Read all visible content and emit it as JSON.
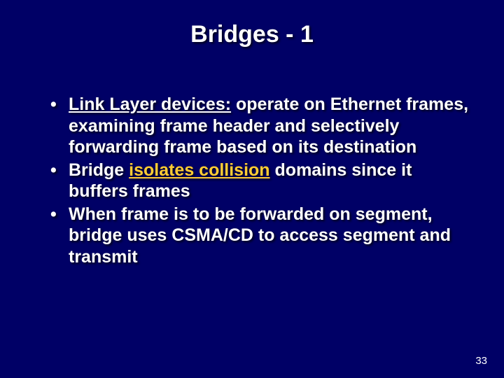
{
  "slide": {
    "background_color": "#000066",
    "text_color": "#ffffff",
    "accent_color": "#ffcc33",
    "title": "Bridges - 1",
    "title_fontsize": 34,
    "body_fontsize": 25,
    "pagenum_fontsize": 15,
    "page_number": "33",
    "bullets": [
      {
        "segments": [
          {
            "text": "Link Layer devices:",
            "underline": true,
            "accent": false
          },
          {
            "text": " operate on Ethernet frames, examining frame header and selectively forwarding frame based on its destination",
            "underline": false,
            "accent": false
          }
        ]
      },
      {
        "segments": [
          {
            "text": "Bridge ",
            "underline": false,
            "accent": false
          },
          {
            "text": "isolates collision",
            "underline": true,
            "accent": true
          },
          {
            "text": " domains since it buffers frames",
            "underline": false,
            "accent": false
          }
        ]
      },
      {
        "segments": [
          {
            "text": "When frame is to be forwarded on segment, bridge uses CSMA/CD to access segment and transmit",
            "underline": false,
            "accent": false
          }
        ]
      }
    ]
  }
}
